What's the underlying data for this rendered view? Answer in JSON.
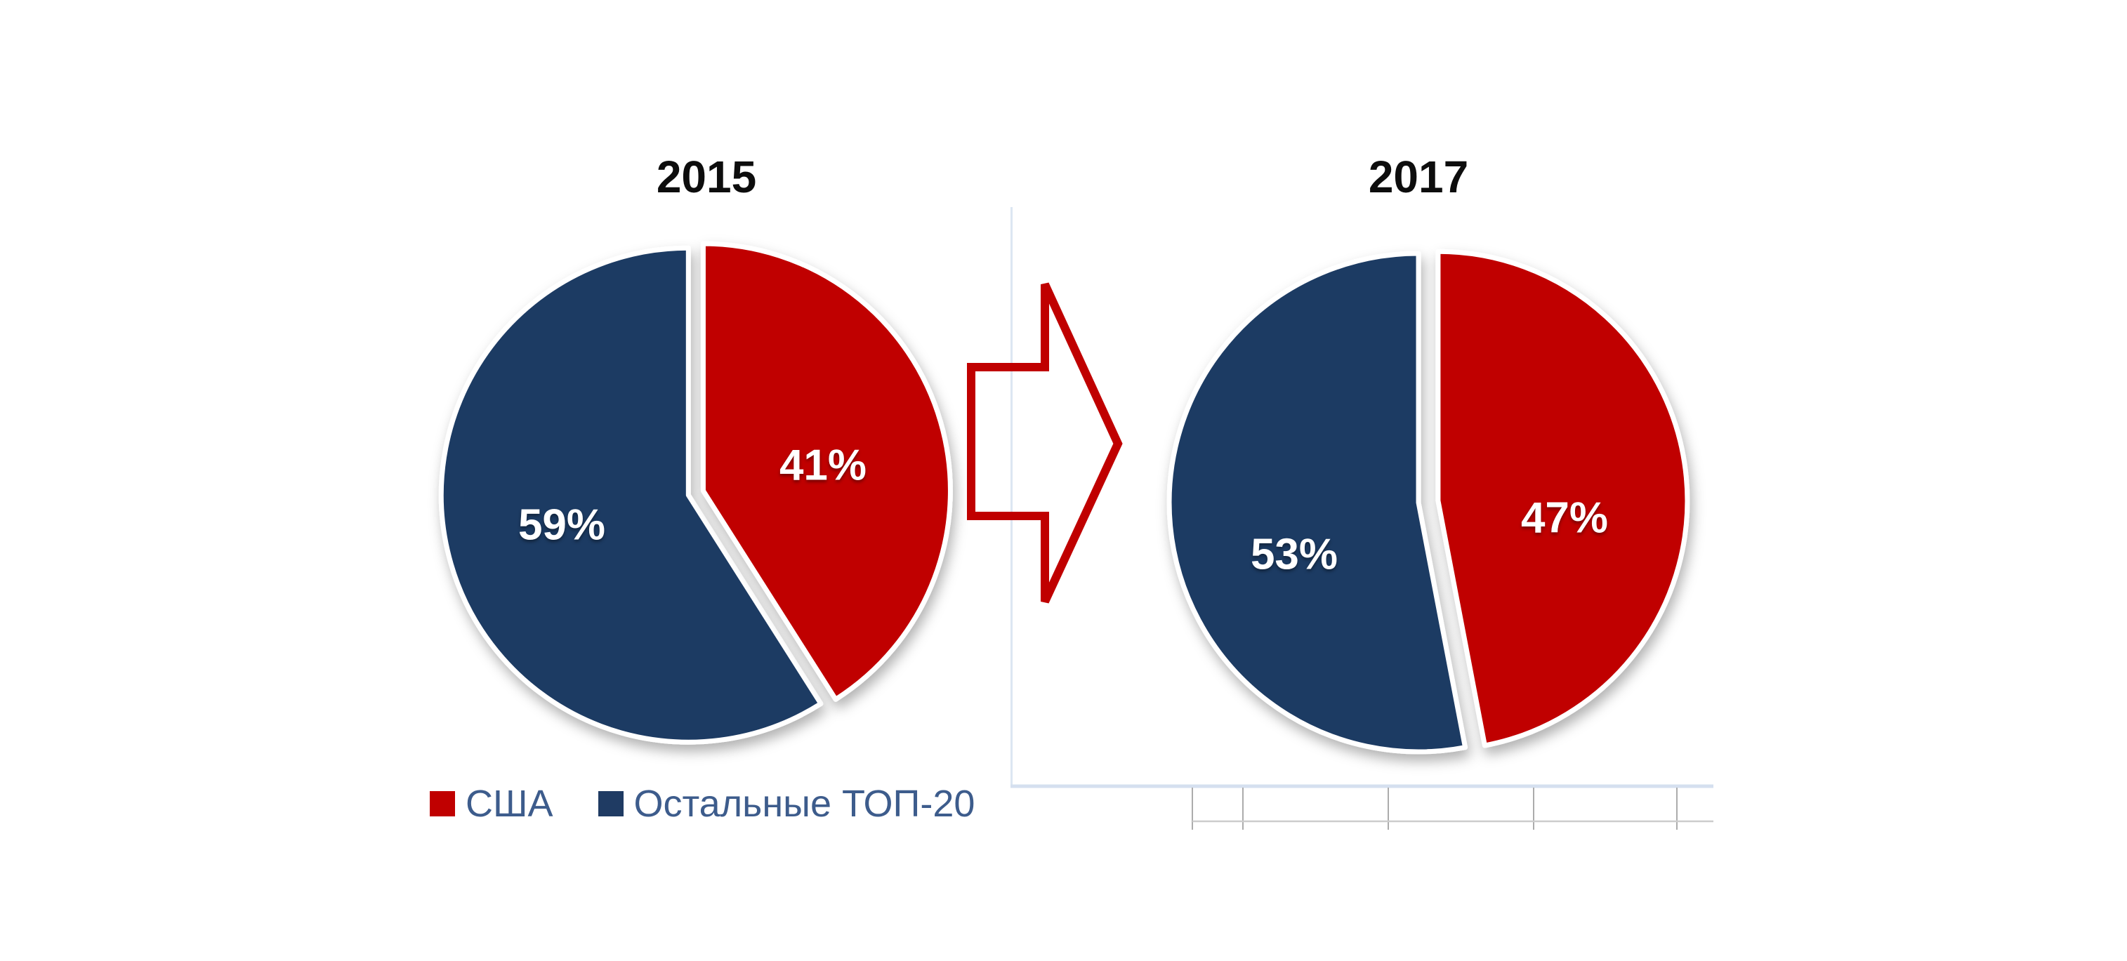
{
  "chart_data": [
    {
      "type": "pie",
      "title": "2015",
      "categories": [
        "США",
        "Остальные ТОП-20"
      ],
      "values": [
        41,
        59
      ],
      "data_labels": [
        "41%",
        "59%"
      ],
      "colors": [
        "#C00000",
        "#1F3B63"
      ],
      "start_angle_deg": 0,
      "direction": "clockwise",
      "label_color": "#FFFFFF",
      "legend_position": "bottom"
    },
    {
      "type": "pie",
      "title": "2017",
      "categories": [
        "США",
        "Остальные ТОП-20"
      ],
      "values": [
        47,
        53
      ],
      "data_labels": [
        "47%",
        "53%"
      ],
      "colors": [
        "#C00000",
        "#1F3B63"
      ],
      "start_angle_deg": 0,
      "direction": "clockwise",
      "label_color": "#FFFFFF",
      "legend_position": "none"
    }
  ],
  "legend": {
    "text_color": "#3D5C8C",
    "items": [
      {
        "label": "США",
        "color": "#C00000"
      },
      {
        "label": "Остальные ТОП-20",
        "color": "#1F3B63"
      }
    ]
  },
  "arrow": {
    "shape": "right-block-arrow",
    "fill": "none",
    "stroke": "#C00000"
  },
  "decor": {
    "plot_border_color": "#D9E3F1",
    "table_line_color": "#ACACAC",
    "table_row_line_color": "#CCCCCC"
  }
}
